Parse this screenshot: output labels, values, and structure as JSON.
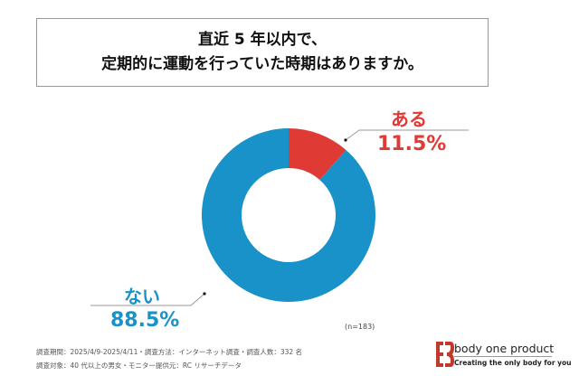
{
  "title": {
    "line1": "直近 5 年以内で、",
    "line2": "定期的に運動を行っていた時期はありますか。"
  },
  "chart_data": {
    "type": "pie",
    "donut": true,
    "categories": [
      "ある",
      "ない"
    ],
    "values": [
      11.5,
      88.5
    ],
    "value_labels": [
      "11.5%",
      "88.5%"
    ],
    "colors": [
      "#e03a35",
      "#1892c8"
    ],
    "start": "top, clockwise",
    "note": "(n=183)"
  },
  "footer": {
    "line1": "調査期間：2025/4/9-2025/4/11・調査方法：インターネット調査・調査人数：332 名",
    "line2": "調査対象：40 代以上の男女・モニター提供元：RC リサーチデータ"
  },
  "brand": {
    "name": "body one product",
    "tagline": "Creating the only body for you",
    "logo_text": "EB",
    "color": "#c0392b"
  }
}
